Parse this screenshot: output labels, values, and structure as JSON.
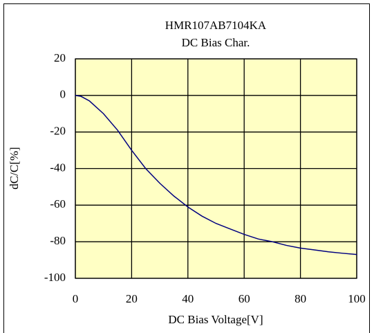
{
  "chart_data": {
    "type": "line",
    "title": "HMR107AB7104KA",
    "subtitle": "DC Bias Char.",
    "x_label": "DC Bias Voltage[V]",
    "y_label": "dC/C[%]",
    "x": [
      0,
      2,
      5,
      10,
      15,
      20,
      25,
      30,
      35,
      40,
      45,
      50,
      55,
      60,
      65,
      70,
      75,
      80,
      85,
      90,
      95,
      100
    ],
    "series": [
      {
        "name": "HMR107AB7104KA",
        "color": "#000080",
        "values": [
          0,
          -0.5,
          -3,
          -10,
          -19,
          -30,
          -40,
          -48,
          -55,
          -61,
          -66,
          -70,
          -73,
          -76,
          -78.5,
          -80,
          -82,
          -83.5,
          -84.5,
          -85.5,
          -86.3,
          -87
        ]
      }
    ],
    "xlim": [
      0,
      100
    ],
    "xticks": [
      0,
      20,
      40,
      60,
      80,
      100
    ],
    "ylim": [
      -100,
      20
    ],
    "yticks": [
      -100,
      -80,
      -60,
      -40,
      -20,
      0,
      20
    ],
    "grid": true,
    "plot_background": "#ffffc4"
  }
}
